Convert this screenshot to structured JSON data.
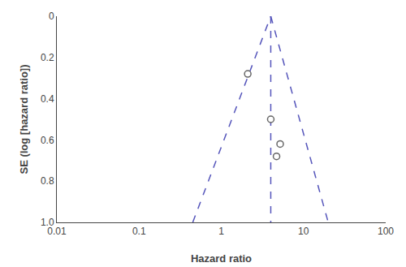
{
  "chart_data": {
    "type": "scatter",
    "xlabel": "Hazard ratio",
    "ylabel": "SE (log [hazard ratio])",
    "log": "x",
    "grid": false,
    "xlim": [
      0.01,
      100
    ],
    "xticks": [
      0.01,
      0.1,
      1,
      10,
      100
    ],
    "ylim": [
      1.0,
      0.0
    ],
    "yticks": [
      0,
      0.2,
      0.4,
      0.6,
      0.8,
      {
        "value": 1.0,
        "label": "1.0"
      }
    ],
    "series": [
      {
        "type": "line",
        "x": [
          0.45,
          4.0
        ],
        "values": [
          1.0,
          0.0
        ],
        "color": "#5555bb",
        "line_style": "dashed"
      },
      {
        "type": "line",
        "x": [
          4.0,
          20.0
        ],
        "values": [
          0.0,
          1.0
        ],
        "color": "#5555bb",
        "line_style": "dashed"
      },
      {
        "type": "line",
        "x": [
          4.0,
          4.0
        ],
        "values": [
          0.0,
          1.0
        ],
        "color": "#5555bb",
        "line_style": "dashed"
      },
      {
        "type": "scatter",
        "x": [
          2.1,
          4.0,
          5.2,
          4.7
        ],
        "values": [
          0.28,
          0.5,
          0.62,
          0.68
        ],
        "color": "#666666",
        "marker": "open_circle"
      }
    ]
  }
}
